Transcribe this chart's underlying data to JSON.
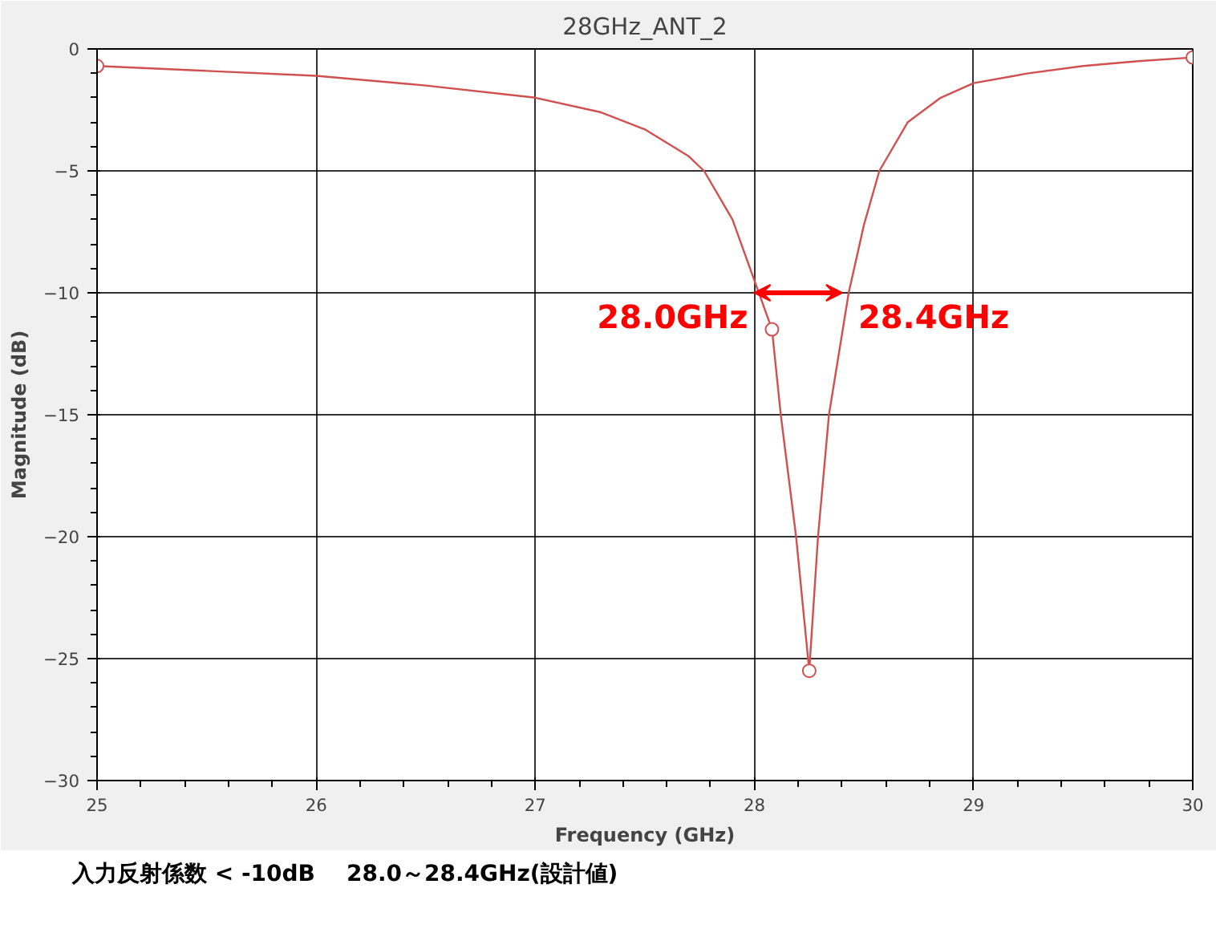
{
  "chart_data": {
    "type": "line",
    "title": "28GHz_ANT_2",
    "xlabel": "Frequency (GHz)",
    "ylabel": "Magnitude (dB)",
    "xlim": [
      25,
      30
    ],
    "ylim": [
      -30,
      0
    ],
    "xticks": [
      25,
      26,
      27,
      28,
      29,
      30
    ],
    "yticks": [
      -30,
      -25,
      -20,
      -15,
      -10,
      -5,
      0
    ],
    "grid": true,
    "line_style": "solid",
    "series": [
      {
        "color": "#d05050",
        "marker": "none",
        "x": [
          25,
          25.5,
          26,
          26.5,
          27,
          27.3,
          27.5,
          27.7,
          27.77,
          27.9,
          28.0,
          28.08,
          28.12,
          28.19,
          28.25,
          28.29,
          28.34,
          28.43,
          28.5,
          28.57,
          28.7,
          28.85,
          29,
          29.25,
          29.5,
          29.75,
          30
        ],
        "values": [
          -0.7,
          -0.9,
          -1.1,
          -1.5,
          -2.0,
          -2.6,
          -3.3,
          -4.4,
          -5.0,
          -7.0,
          -9.5,
          -11.5,
          -15,
          -20,
          -25.5,
          -20,
          -15,
          -10,
          -7.2,
          -5.0,
          -3.0,
          -2.0,
          -1.4,
          -1.0,
          -0.7,
          -0.5,
          -0.35
        ]
      },
      {
        "type": "scatter",
        "color": "#d05050",
        "marker": "circle",
        "x": [
          25,
          28.08,
          28.25,
          30
        ],
        "values": [
          -0.7,
          -11.5,
          -25.5,
          -0.35
        ]
      }
    ],
    "annotations": [
      {
        "text": "28.0GHz",
        "x": 28.0,
        "y": -10
      },
      {
        "text": "28.4GHz",
        "x": 28.4,
        "y": -10
      },
      "入力反射係数 < -10dB",
      "28.0～28.4GHz(設計値)"
    ]
  }
}
